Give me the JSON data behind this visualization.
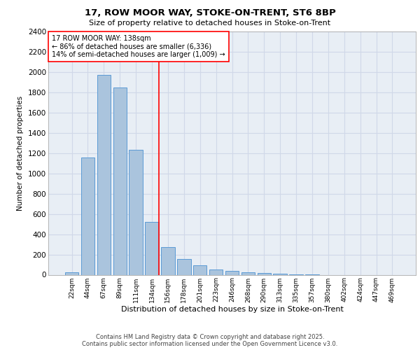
{
  "title1": "17, ROW MOOR WAY, STOKE-ON-TRENT, ST6 8BP",
  "title2": "Size of property relative to detached houses in Stoke-on-Trent",
  "xlabel": "Distribution of detached houses by size in Stoke-on-Trent",
  "ylabel": "Number of detached properties",
  "bins": [
    "22sqm",
    "44sqm",
    "67sqm",
    "89sqm",
    "111sqm",
    "134sqm",
    "156sqm",
    "178sqm",
    "201sqm",
    "223sqm",
    "246sqm",
    "268sqm",
    "290sqm",
    "313sqm",
    "335sqm",
    "357sqm",
    "380sqm",
    "402sqm",
    "424sqm",
    "447sqm",
    "469sqm"
  ],
  "values": [
    25,
    1160,
    1970,
    1850,
    1230,
    520,
    270,
    155,
    90,
    50,
    40,
    22,
    18,
    10,
    5,
    2,
    0,
    0,
    0,
    0,
    0
  ],
  "bar_color": "#aac4dd",
  "bar_edge_color": "#5b9bd5",
  "grid_color": "#d0d8e8",
  "bg_color": "#e8eef5",
  "vline_x": 5.42,
  "vline_color": "red",
  "annotation_text": "17 ROW MOOR WAY: 138sqm\n← 86% of detached houses are smaller (6,336)\n14% of semi-detached houses are larger (1,009) →",
  "annotation_box_color": "white",
  "annotation_box_edge": "red",
  "footer1": "Contains HM Land Registry data © Crown copyright and database right 2025.",
  "footer2": "Contains public sector information licensed under the Open Government Licence v3.0.",
  "ylim": [
    0,
    2400
  ],
  "yticks": [
    0,
    200,
    400,
    600,
    800,
    1000,
    1200,
    1400,
    1600,
    1800,
    2000,
    2200,
    2400
  ]
}
